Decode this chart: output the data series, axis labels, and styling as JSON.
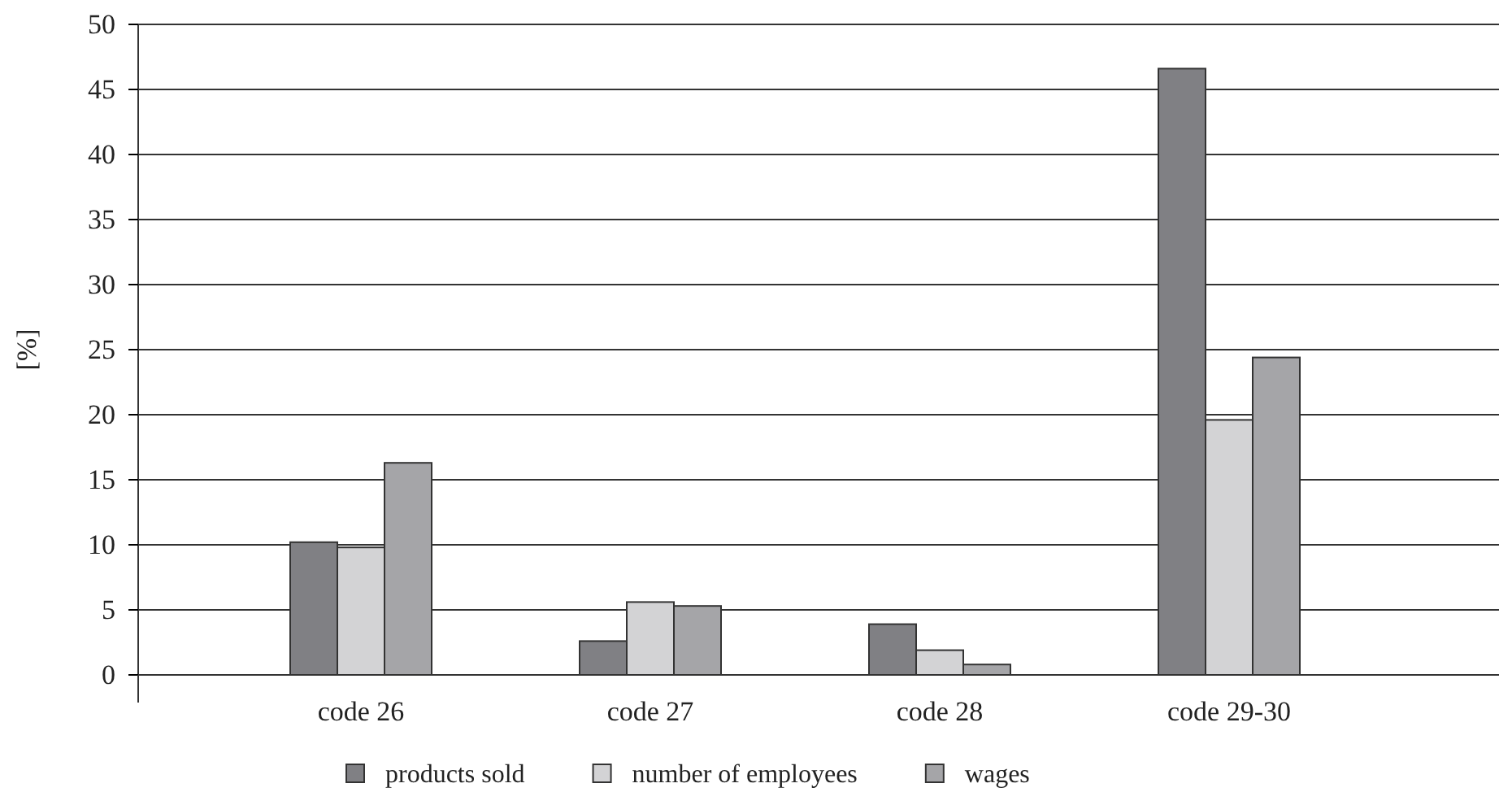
{
  "chart_data": {
    "type": "bar",
    "ylabel": "[%]",
    "categories": [
      "code 26",
      "code 27",
      "code 28",
      "code 29-30"
    ],
    "series": [
      {
        "name": "products sold",
        "color": "#808084",
        "values": [
          10.2,
          2.6,
          3.9,
          46.6
        ]
      },
      {
        "name": "number of employees",
        "color": "#d3d3d5",
        "values": [
          9.8,
          5.6,
          1.9,
          19.6
        ]
      },
      {
        "name": "wages",
        "color": "#a5a5a8",
        "values": [
          16.3,
          5.3,
          0.8,
          24.4
        ]
      }
    ],
    "ylim": [
      0,
      50
    ],
    "yticks": [
      0,
      5,
      10,
      15,
      20,
      25,
      30,
      35,
      40,
      45,
      50
    ],
    "grid": "y",
    "legend": "bottom"
  }
}
